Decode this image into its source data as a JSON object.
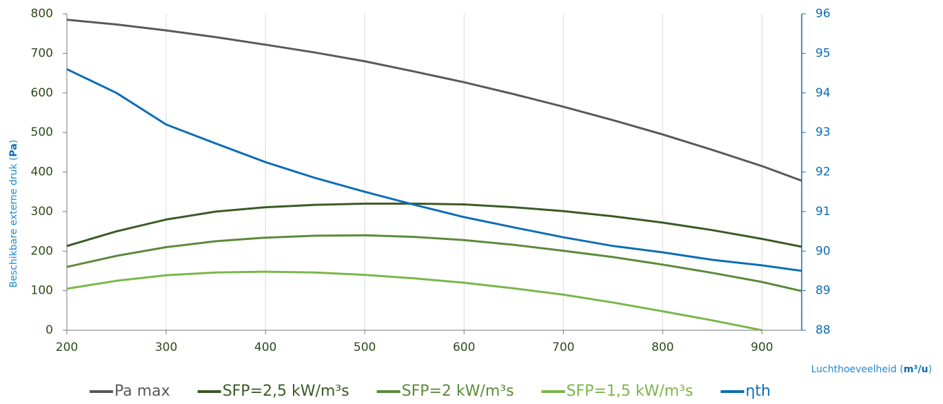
{
  "chart_data": {
    "type": "line",
    "y_label": [
      "Beschikbare externe druk (",
      "Pa",
      ")"
    ],
    "x_label": [
      "Luchthoeveelheid (",
      "m³/u",
      ")"
    ],
    "x": [
      200,
      250,
      300,
      350,
      400,
      450,
      500,
      550,
      600,
      650,
      700,
      750,
      800,
      850,
      900,
      940
    ],
    "xlim": [
      200,
      940
    ],
    "xticks": [
      200,
      300,
      400,
      500,
      600,
      700,
      800,
      900
    ],
    "ylim": [
      0,
      800
    ],
    "yticks": [
      0,
      100,
      200,
      300,
      400,
      500,
      600,
      700,
      800
    ],
    "y2lim": [
      88,
      96
    ],
    "y2ticks": [
      88,
      89,
      90,
      91,
      92,
      93,
      94,
      95,
      96
    ],
    "grid": "x",
    "series": [
      {
        "name": "Pa max",
        "color": "#58595b",
        "values": [
          785,
          773,
          758,
          741,
          722,
          702,
          680,
          654,
          627,
          597,
          565,
          531,
          495,
          456,
          415,
          378
        ]
      },
      {
        "name": "SFP=2,5 kW/m³s",
        "color": "#3a5a24",
        "values": [
          213,
          250,
          280,
          300,
          311,
          317,
          320,
          320,
          318,
          311,
          301,
          288,
          272,
          253,
          231,
          211
        ]
      },
      {
        "name": "SFP=2 kW/m³s",
        "color": "#5b8a3a",
        "values": [
          160,
          188,
          210,
          225,
          234,
          239,
          240,
          236,
          228,
          216,
          201,
          185,
          166,
          145,
          122,
          99
        ]
      },
      {
        "name": "SFP=1,5 kW/m³s",
        "color": "#7ab648",
        "values": [
          105,
          125,
          139,
          146,
          148,
          146,
          140,
          131,
          120,
          106,
          90,
          70,
          48,
          25,
          0,
          null
        ]
      },
      {
        "name": "ηth",
        "color": "#0b6db5",
        "axis": "y2",
        "values": [
          94.6,
          94.0,
          93.2,
          92.72,
          92.25,
          91.85,
          91.5,
          91.17,
          90.86,
          90.6,
          90.35,
          90.13,
          89.97,
          89.78,
          89.64,
          89.5
        ]
      }
    ]
  }
}
